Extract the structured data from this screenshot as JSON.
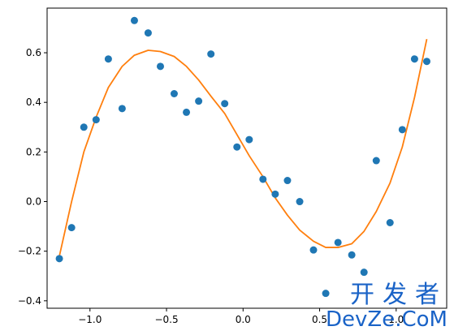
{
  "chart_data": {
    "type": "scatter",
    "x_range": [
      -1.28,
      1.33
    ],
    "y_range": [
      -0.43,
      0.78
    ],
    "xticks": [
      -1.0,
      -0.5,
      0.0,
      0.5,
      1.0
    ],
    "yticks": [
      -0.4,
      -0.2,
      0.0,
      0.2,
      0.4,
      0.6
    ],
    "xtick_labels": [
      "−1.0",
      "−0.5",
      "0.0",
      "0.5",
      "1.0"
    ],
    "ytick_labels": [
      "−0.4",
      "−0.2",
      "0.0",
      "0.2",
      "0.4",
      "0.6"
    ],
    "grid": false,
    "series": [
      {
        "kind": "scatter",
        "color": "#1f77b4",
        "points": [
          [
            -1.2,
            -0.23
          ],
          [
            -1.12,
            -0.105
          ],
          [
            -1.04,
            0.3
          ],
          [
            -0.96,
            0.33
          ],
          [
            -0.88,
            0.575
          ],
          [
            -0.79,
            0.375
          ],
          [
            -0.71,
            0.73
          ],
          [
            -0.62,
            0.68
          ],
          [
            -0.54,
            0.545
          ],
          [
            -0.45,
            0.435
          ],
          [
            -0.37,
            0.36
          ],
          [
            -0.29,
            0.405
          ],
          [
            -0.21,
            0.595
          ],
          [
            -0.12,
            0.395
          ],
          [
            -0.04,
            0.22
          ],
          [
            0.04,
            0.25
          ],
          [
            0.13,
            0.09
          ],
          [
            0.21,
            0.03
          ],
          [
            0.29,
            0.085
          ],
          [
            0.37,
            0.0
          ],
          [
            0.46,
            -0.195
          ],
          [
            0.54,
            -0.37
          ],
          [
            0.62,
            -0.165
          ],
          [
            0.71,
            -0.215
          ],
          [
            0.79,
            -0.285
          ],
          [
            0.87,
            0.165
          ],
          [
            0.96,
            -0.085
          ],
          [
            1.04,
            0.29
          ],
          [
            1.12,
            0.575
          ],
          [
            1.2,
            0.565
          ]
        ]
      },
      {
        "kind": "line",
        "color": "#ff7f0e",
        "x": [
          -1.2,
          -1.12,
          -1.04,
          -0.96,
          -0.88,
          -0.79,
          -0.71,
          -0.62,
          -0.54,
          -0.45,
          -0.37,
          -0.29,
          -0.21,
          -0.12,
          -0.04,
          0.04,
          0.13,
          0.21,
          0.29,
          0.37,
          0.46,
          0.54,
          0.62,
          0.71,
          0.79,
          0.87,
          0.96,
          1.04,
          1.12,
          1.2
        ],
        "y": [
          -0.22,
          0.0,
          0.2,
          0.34,
          0.46,
          0.545,
          0.59,
          0.61,
          0.605,
          0.585,
          0.545,
          0.49,
          0.425,
          0.355,
          0.27,
          0.185,
          0.1,
          0.015,
          -0.055,
          -0.115,
          -0.16,
          -0.185,
          -0.185,
          -0.17,
          -0.12,
          -0.04,
          0.075,
          0.22,
          0.42,
          0.655
        ]
      }
    ]
  },
  "watermark": {
    "line1": "开发者",
    "line2": "DevZe.CoM"
  }
}
